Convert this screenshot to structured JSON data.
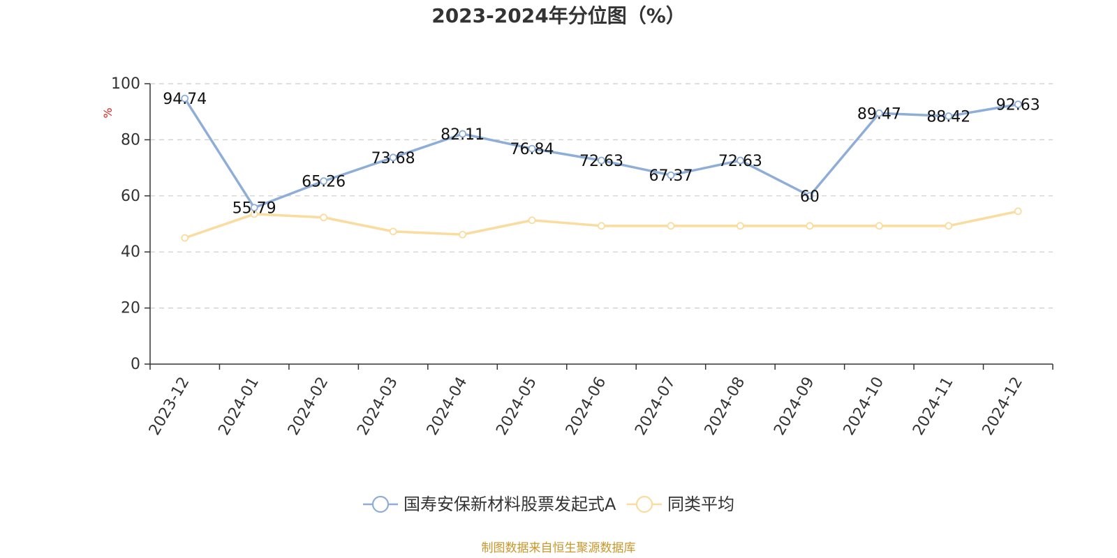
{
  "chart_data": {
    "type": "line",
    "title": "2023-2024年分位图（%）",
    "ylabel": "%",
    "ylim": [
      0,
      100
    ],
    "yticks": [
      0,
      20,
      40,
      60,
      80,
      100
    ],
    "grid": true,
    "legend_position": "bottom-center",
    "categories": [
      "2023-12",
      "2024-01",
      "2024-02",
      "2024-03",
      "2024-04",
      "2024-05",
      "2024-06",
      "2024-07",
      "2024-08",
      "2024-09",
      "2024-10",
      "2024-11",
      "2024-12"
    ],
    "series": [
      {
        "name": "国寿安保新材料股票发起式A",
        "color": "#8eaed8",
        "values": [
          94.74,
          55.79,
          65.26,
          73.68,
          82.11,
          76.84,
          72.63,
          67.37,
          72.63,
          60,
          89.47,
          88.42,
          92.63
        ],
        "labels": [
          "94.74",
          "55.79",
          "65.26",
          "73.68",
          "82.11",
          "76.84",
          "72.63",
          "67.37",
          "72.63",
          "60",
          "89.47",
          "88.42",
          "92.63"
        ]
      },
      {
        "name": "同类平均",
        "color": "#f9dc9e",
        "values": [
          45,
          53.5,
          52.3,
          47.3,
          46.2,
          51.3,
          49.3,
          49.3,
          49.3,
          49.3,
          49.3,
          49.3,
          54.5
        ]
      }
    ],
    "source": "制图数据来自恒生聚源数据库"
  }
}
